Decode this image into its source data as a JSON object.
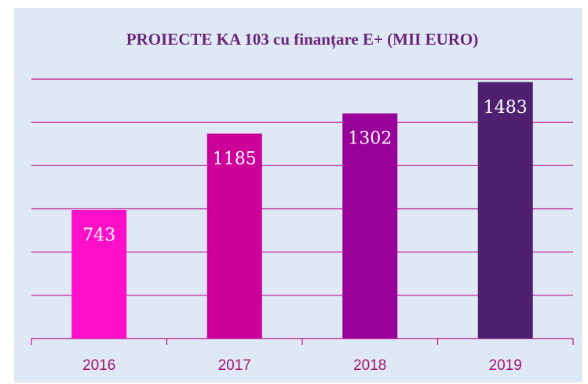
{
  "chart_data": {
    "type": "bar",
    "title": "PROIECTE KA 103 cu finanțare E+ (MII EURO)",
    "categories": [
      "2016",
      "2017",
      "2018",
      "2019"
    ],
    "values": [
      743,
      1185,
      1302,
      1483
    ],
    "colors": [
      "#ff10c8",
      "#cc0099",
      "#990099",
      "#4f2070"
    ],
    "ylim": [
      0,
      1500
    ],
    "yticks": [
      0,
      250,
      500,
      750,
      1000,
      1250,
      1500
    ],
    "grid": true
  }
}
